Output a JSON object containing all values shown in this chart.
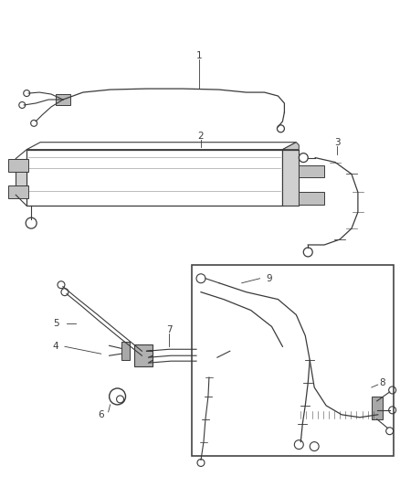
{
  "bg_color": "#ffffff",
  "line_color": "#3a3a3a",
  "label_color": "#000000",
  "label_fontsize": 7.5,
  "fig_width": 4.38,
  "fig_height": 5.33,
  "dpi": 100
}
